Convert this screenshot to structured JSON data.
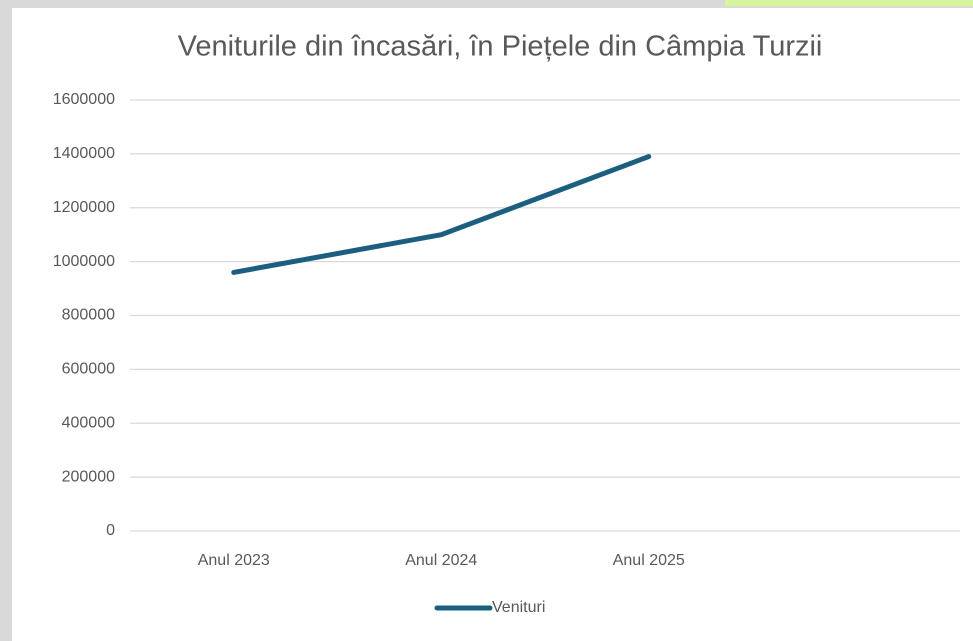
{
  "chart_data": {
    "type": "line",
    "title": "Veniturile din încasări, în Piețele din Câmpia Turzii",
    "categories": [
      "Anul 2023",
      "Anul 2024",
      "Anul 2025",
      null
    ],
    "series": [
      {
        "name": "Venituri",
        "color": "#1b5e80",
        "values": [
          960000,
          1100000,
          1390000,
          null
        ]
      }
    ],
    "ylim": [
      0,
      1600000
    ],
    "yticks": [
      0,
      200000,
      400000,
      600000,
      800000,
      1000000,
      1200000,
      1400000,
      1600000
    ],
    "grid": true,
    "legend": "bottom"
  }
}
